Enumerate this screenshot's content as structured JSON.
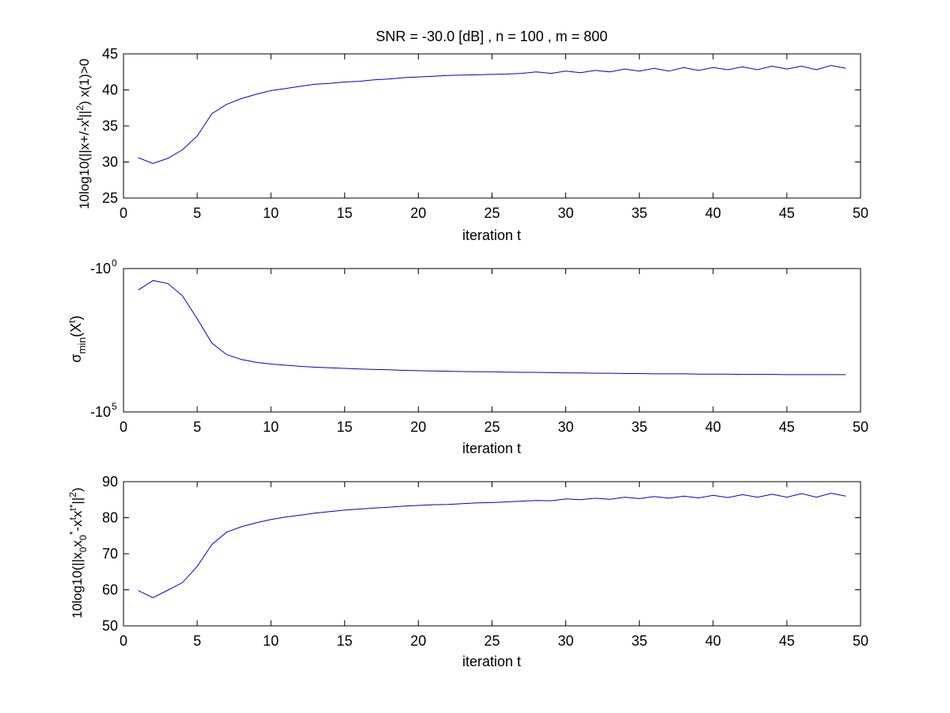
{
  "figure": {
    "background": "#ffffff",
    "line_color": "#0000cc",
    "axes_color": "#000000"
  },
  "chart_data": [
    {
      "type": "line",
      "title": "SNR = -30.0 [dB] , n = 100 , m = 800",
      "xlabel": "iteration t",
      "ylabel": "10log10(||x+/-x^t||^2) x(1)>0",
      "ylabel_parts": {
        "prefix": "10log10(||x+/-x",
        "sup_t": "t",
        "middle": "||",
        "sup_2": "2",
        "suffix": ") x(1)>0"
      },
      "xlim": [
        0,
        50
      ],
      "ylim": [
        25,
        45
      ],
      "x_ticks": [
        "0",
        "5",
        "10",
        "15",
        "20",
        "25",
        "30",
        "35",
        "40",
        "45",
        "50"
      ],
      "y_ticks": [
        "25",
        "30",
        "35",
        "40",
        "45"
      ],
      "grid": false,
      "series": [
        {
          "x": [
            1,
            2,
            3,
            4,
            5,
            6,
            7,
            8,
            9,
            10,
            11,
            12,
            13,
            14,
            15,
            16,
            17,
            18,
            19,
            20,
            21,
            22,
            23,
            24,
            25,
            26,
            27,
            28,
            29,
            30,
            31,
            32,
            33,
            34,
            35,
            36,
            37,
            38,
            39,
            40,
            41,
            42,
            43,
            44,
            45,
            46,
            47,
            48,
            49
          ],
          "values": [
            30.6,
            29.8,
            30.5,
            31.7,
            33.6,
            36.7,
            38.0,
            38.8,
            39.4,
            39.9,
            40.2,
            40.5,
            40.8,
            40.9,
            41.1,
            41.2,
            41.4,
            41.5,
            41.7,
            41.8,
            41.9,
            42.0,
            42.05,
            42.1,
            42.15,
            42.2,
            42.3,
            42.5,
            42.3,
            42.6,
            42.4,
            42.7,
            42.5,
            42.9,
            42.6,
            43.0,
            42.6,
            43.1,
            42.7,
            43.1,
            42.8,
            43.2,
            42.8,
            43.3,
            42.9,
            43.3,
            42.8,
            43.4,
            43.0
          ]
        }
      ]
    },
    {
      "type": "line",
      "title": "",
      "xlabel": "iteration t",
      "ylabel": "σmin(X^t)",
      "ylabel_parts": {
        "sigma": "σ",
        "sub": "min",
        "open": "(X",
        "sup": "t",
        "close": ")"
      },
      "xlim": [
        0,
        50
      ],
      "yscale": "symlog-negative",
      "ylim_exponent": [
        0,
        5
      ],
      "x_ticks": [
        "0",
        "5",
        "10",
        "15",
        "20",
        "25",
        "30",
        "35",
        "40",
        "45",
        "50"
      ],
      "y_tick_labels": [
        {
          "base": "-10",
          "exp": "0"
        },
        {
          "base": "-10",
          "exp": "5"
        }
      ],
      "grid": false,
      "series": [
        {
          "x": [
            1,
            2,
            3,
            4,
            5,
            6,
            7,
            8,
            9,
            10,
            11,
            12,
            13,
            14,
            15,
            16,
            17,
            18,
            19,
            20,
            21,
            22,
            23,
            24,
            25,
            26,
            27,
            28,
            29,
            30,
            31,
            32,
            33,
            34,
            35,
            36,
            37,
            38,
            39,
            40,
            41,
            42,
            43,
            44,
            45,
            46,
            47,
            48,
            49
          ],
          "y_exponent": [
            0.75,
            0.42,
            0.52,
            0.95,
            1.75,
            2.6,
            3.0,
            3.17,
            3.27,
            3.33,
            3.37,
            3.41,
            3.44,
            3.46,
            3.48,
            3.5,
            3.52,
            3.53,
            3.55,
            3.56,
            3.57,
            3.58,
            3.59,
            3.6,
            3.6,
            3.61,
            3.62,
            3.62,
            3.63,
            3.64,
            3.64,
            3.65,
            3.65,
            3.66,
            3.66,
            3.67,
            3.67,
            3.67,
            3.68,
            3.68,
            3.68,
            3.69,
            3.69,
            3.69,
            3.7,
            3.7,
            3.7,
            3.7,
            3.7
          ]
        }
      ]
    },
    {
      "type": "line",
      "title": "",
      "xlabel": "iteration t",
      "ylabel": "10log10(||x0x0*-x^t x^t*||^2)",
      "ylabel_parts": {
        "prefix": "10log10(||x",
        "sub_0a": "0",
        "x2": "x",
        "sub_0b": "0",
        "sup_star": "*",
        "minus": "-x",
        "sup_t1": "t",
        "x3": "x",
        "sup_tstar": "t*",
        "bars": "||",
        "sup_2": "2",
        "close": ")"
      },
      "xlim": [
        0,
        50
      ],
      "ylim": [
        50,
        90
      ],
      "x_ticks": [
        "0",
        "5",
        "10",
        "15",
        "20",
        "25",
        "30",
        "35",
        "40",
        "45",
        "50"
      ],
      "y_ticks": [
        "50",
        "60",
        "70",
        "80",
        "90"
      ],
      "grid": false,
      "series": [
        {
          "x": [
            1,
            2,
            3,
            4,
            5,
            6,
            7,
            8,
            9,
            10,
            11,
            12,
            13,
            14,
            15,
            16,
            17,
            18,
            19,
            20,
            21,
            22,
            23,
            24,
            25,
            26,
            27,
            28,
            29,
            30,
            31,
            32,
            33,
            34,
            35,
            36,
            37,
            38,
            39,
            40,
            41,
            42,
            43,
            44,
            45,
            46,
            47,
            48,
            49
          ],
          "values": [
            59.8,
            57.8,
            59.9,
            62.0,
            66.5,
            72.6,
            76.0,
            77.5,
            78.6,
            79.5,
            80.2,
            80.7,
            81.3,
            81.7,
            82.1,
            82.4,
            82.7,
            82.9,
            83.2,
            83.4,
            83.6,
            83.7,
            83.9,
            84.1,
            84.2,
            84.4,
            84.6,
            84.8,
            84.7,
            85.2,
            85.0,
            85.4,
            85.1,
            85.7,
            85.3,
            85.9,
            85.4,
            86.0,
            85.5,
            86.2,
            85.6,
            86.4,
            85.7,
            86.5,
            85.7,
            86.7,
            85.7,
            86.8,
            86.0
          ]
        }
      ]
    }
  ]
}
